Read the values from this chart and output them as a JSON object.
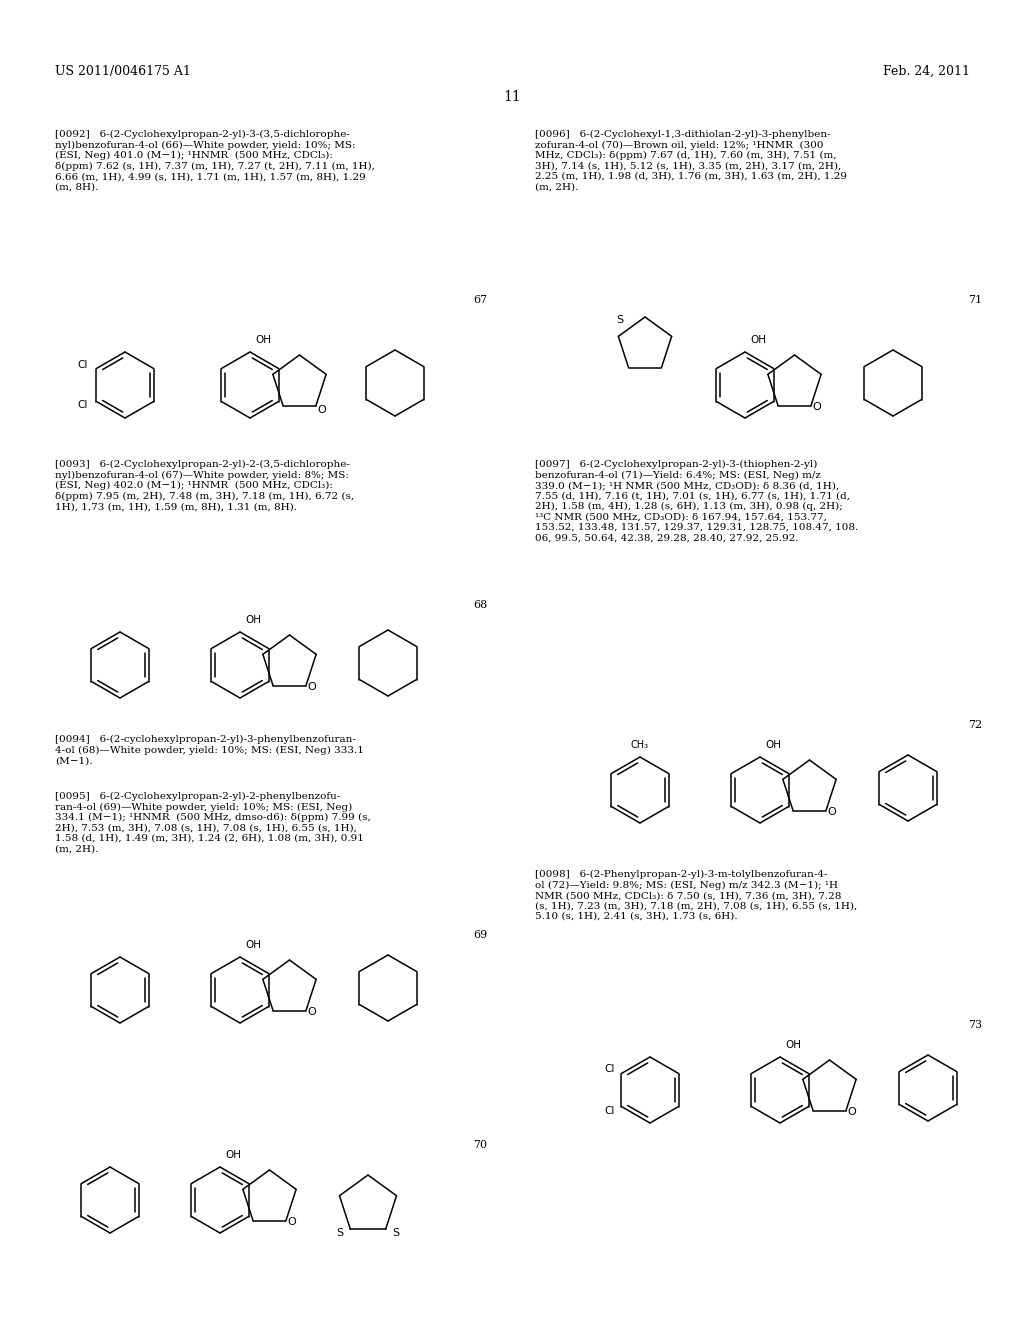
{
  "page_title_left": "US 2011/0046175 A1",
  "page_title_right": "Feb. 24, 2011",
  "page_number": "11",
  "background_color": "#ffffff",
  "text_color": "#000000",
  "font_size_header": 9.5,
  "font_size_body": 7.5,
  "font_size_page_num": 10,
  "compound_numbers_left": [
    "67",
    "68",
    "70"
  ],
  "compound_numbers_right": [
    "71",
    "72",
    "73"
  ],
  "para_0092": "[0092]   6-(2-Cyclohexylpropan-2-yl)-3-(3,5-dichlorophe-\nnyl)benzofuran-4-ol (66)—White powder, yield: 10%; MS:\n(ESI, Neg) 401.0 (M−1); ¹HNMR (500 MHz, CDCl₃):\nδ(ppm) 7.62 (s, 1H), 7.37 (m, 1H), 7.27 (t, 2H), 7.11 (m, 1H),\n6.66 (m, 1H), 4.99 (s, 1H), 1.71 (m, 1H), 1.57 (m, 8H), 1.29\n(m, 8H).",
  "para_0093": "[0093]   6-(2-Cyclohexylpropan-2-yl)-2-(3,5-dichlorophe-\nnyl)benzofuran-4-ol (67)—White powder, yield: 8%; MS:\n(ESI, Neg) 402.0 (M−1); ¹HNMR (500 MHz, CDCl₃):\nδ(ppm) 7.95 (m, 2H), 7.48 (m, 3H), 7.18 (m, 1H), 6.72 (s,\n1H), 1.73 (m, 1H), 1.59 (m, 8H), 1.31 (m, 8H).",
  "para_0094": "[0094]   6-(2-cyclohexylpropan-2-yl)-3-phenylbenzofuran-\n4-ol (68)—White powder, yield: 10%; MS: (ESI, Neg) 333.1\n(M−1).",
  "para_0095": "[0095]   6-(2-Cyclohexylpropan-2-yl)-2-phenylbenzofu-\nran-4-ol (69)—White powder, yield: 10%; MS: (ESI, Neg)\n334.1 (M−1); ¹HNMR (500 MHz, dmso-d6): δ(ppm) 7.99 (s,\n2H), 7.53 (m, 3H), 7.08 (s, 1H), 7.08 (s, 1H), 6.55 (s, 1H),\n1.58 (d, 1H), 1.49 (m, 3H), 1.24 (2, 6H), 1.08 (m, 3H), 0.91\n(m, 2H).",
  "para_0096": "[0096]   6-(2-Cyclohexyl-1,3-dithiolan-2-yl)-3-phenylben-\nzofuran-4-ol (70)—Brown oil, yield: 12%; ¹HNMR (300\nMHz, CDCl₃): δ(ppm) 7.67 (d, 1H), 7.60 (m, 3H), 7.51 (m,\n3H), 7.14 (s, 1H), 5.12 (s, 1H), 3.35 (m, 2H), 3.17 (m, 2H),\n2.25 (m, 1H), 1.98 (d, 3H), 1.76 (m, 3H), 1.63 (m, 2H), 1.29\n(m, 2H).",
  "para_0097": "[0097]   6-(2-Cyclohexylpropan-2-yl)-3-(thiophen-2-yl)\nbenzofuran-4-ol (71)—Yield: 6.4%; MS: (ESI, Neg) m/z\n339.0 (M−1); ¹H NMR (500 MHz, CD₃OD): δ 8.36 (d, 1H),\n7.55 (d, 1H), 7.16 (t, 1H), 7.01 (s, 1H), 6.77 (s, 1H), 1.71 (d,\n2H), 1.58 (m, 4H), 1.28 (s, 6H), 1.13 (m, 3H), 0.98 (q, 2H);\n¹³C NMR (500 MHz, CD₃OD): δ 167.94, 157.64, 153.77,\n153.52, 133.48, 131.57, 129.37, 129.31, 128.75, 108.47, 108.\n06, 99.5, 50.64, 42.38, 29.28, 28.40, 27.92, 25.92.",
  "para_0098": "[0098]   6-(2-Phenylpropan-2-yl)-3-m-tolylbenzofuran-4-\nol (72)—Yield: 9.8%; MS: (ESI, Neg) m/z 342.3 (M−1); ¹H\nNMR (500 MHz, CDCl₃): δ 7.50 (s, 1H), 7.36 (m, 3H), 7.28\n(s, 1H), 7.23 (m, 3H), 7.18 (m, 2H), 7.08 (s, 1H), 6.55 (s, 1H),\n5.10 (s, 1H), 2.41 (s, 3H), 1.73 (s, 6H)."
}
